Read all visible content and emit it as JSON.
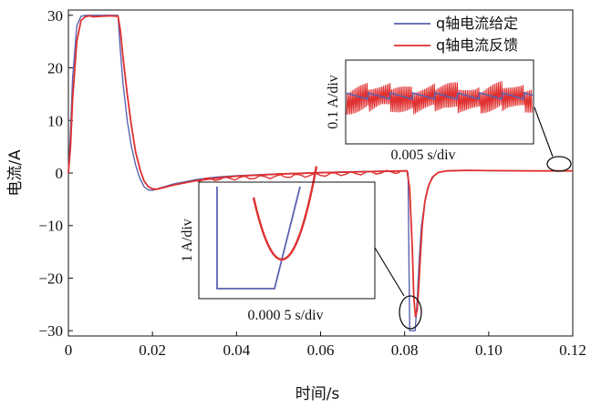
{
  "chart_data": {
    "type": "line",
    "xlabel": "时间/s",
    "ylabel": "电流/A",
    "xlim": [
      0,
      0.12
    ],
    "ylim": [
      -31,
      31
    ],
    "xticks": [
      "0",
      "0.02",
      "0.04",
      "0.06",
      "0.08",
      "0.10",
      "0.12"
    ],
    "xtick_values": [
      0,
      0.02,
      0.04,
      0.06,
      0.08,
      0.1,
      0.12
    ],
    "yticks": [
      "30",
      "20",
      "10",
      "0",
      "−10",
      "−20",
      "−30"
    ],
    "ytick_values": [
      30,
      20,
      10,
      0,
      -10,
      -20,
      -30
    ],
    "legend_position": "top-right",
    "series": [
      {
        "name": "q轴电流给定",
        "color": "#5b63b0",
        "x": [
          0,
          0.0005,
          0.001,
          0.002,
          0.003,
          0.004,
          0.005,
          0.006,
          0.008,
          0.01,
          0.0118,
          0.0122,
          0.013,
          0.014,
          0.015,
          0.016,
          0.017,
          0.018,
          0.019,
          0.02,
          0.022,
          0.025,
          0.03,
          0.035,
          0.04,
          0.05,
          0.06,
          0.07,
          0.0805,
          0.0808,
          0.0812,
          0.0815,
          0.082,
          0.0825,
          0.083,
          0.0835,
          0.084,
          0.085,
          0.086,
          0.087,
          0.088,
          0.09,
          0.095,
          0.1,
          0.11,
          0.12
        ],
        "y": [
          0,
          8,
          18,
          28,
          29.8,
          30,
          30,
          30,
          30,
          30,
          30,
          25,
          17,
          10,
          5,
          1.5,
          -1,
          -2.6,
          -3.2,
          -3.3,
          -2.8,
          -2.1,
          -1.3,
          -0.8,
          -0.5,
          -0.15,
          0.1,
          0.3,
          0.45,
          0,
          -30,
          -30,
          -30,
          -30,
          -24,
          -16,
          -10,
          -4.5,
          -1.8,
          -0.5,
          0.1,
          0.4,
          0.5,
          0.45,
          0.4,
          0.4
        ]
      },
      {
        "name": "q轴电流反馈",
        "color": "#e03030",
        "x": [
          0,
          0.0005,
          0.001,
          0.002,
          0.003,
          0.004,
          0.005,
          0.006,
          0.008,
          0.01,
          0.0118,
          0.0124,
          0.013,
          0.014,
          0.015,
          0.016,
          0.017,
          0.018,
          0.019,
          0.02,
          0.021,
          0.022,
          0.025,
          0.03,
          0.035,
          0.04,
          0.05,
          0.06,
          0.07,
          0.0806,
          0.0812,
          0.0818,
          0.0822,
          0.0826,
          0.083,
          0.0834,
          0.0838,
          0.0842,
          0.0848,
          0.0856,
          0.0866,
          0.088,
          0.09,
          0.095,
          0.1,
          0.11,
          0.12
        ],
        "y": [
          0,
          5,
          14,
          25,
          29,
          29.7,
          29.9,
          29.7,
          29.8,
          29.9,
          29.8,
          27,
          22,
          15,
          9,
          4,
          0.8,
          -1.5,
          -2.6,
          -3.0,
          -3.1,
          -2.9,
          -2.3,
          -1.5,
          -1.0,
          -0.6,
          -0.2,
          0.05,
          0.25,
          0.4,
          -3,
          -14,
          -24,
          -27.3,
          -26,
          -21,
          -15,
          -10,
          -5.5,
          -2.6,
          -0.8,
          0.1,
          0.4,
          0.5,
          0.45,
          0.4,
          0.4
        ]
      }
    ],
    "insets": [
      {
        "label_y": "0.1 A/div",
        "label_x": "0.005 s/div"
      },
      {
        "label_y": "1 A/div",
        "label_x": "0.000 5 s/div"
      }
    ]
  }
}
